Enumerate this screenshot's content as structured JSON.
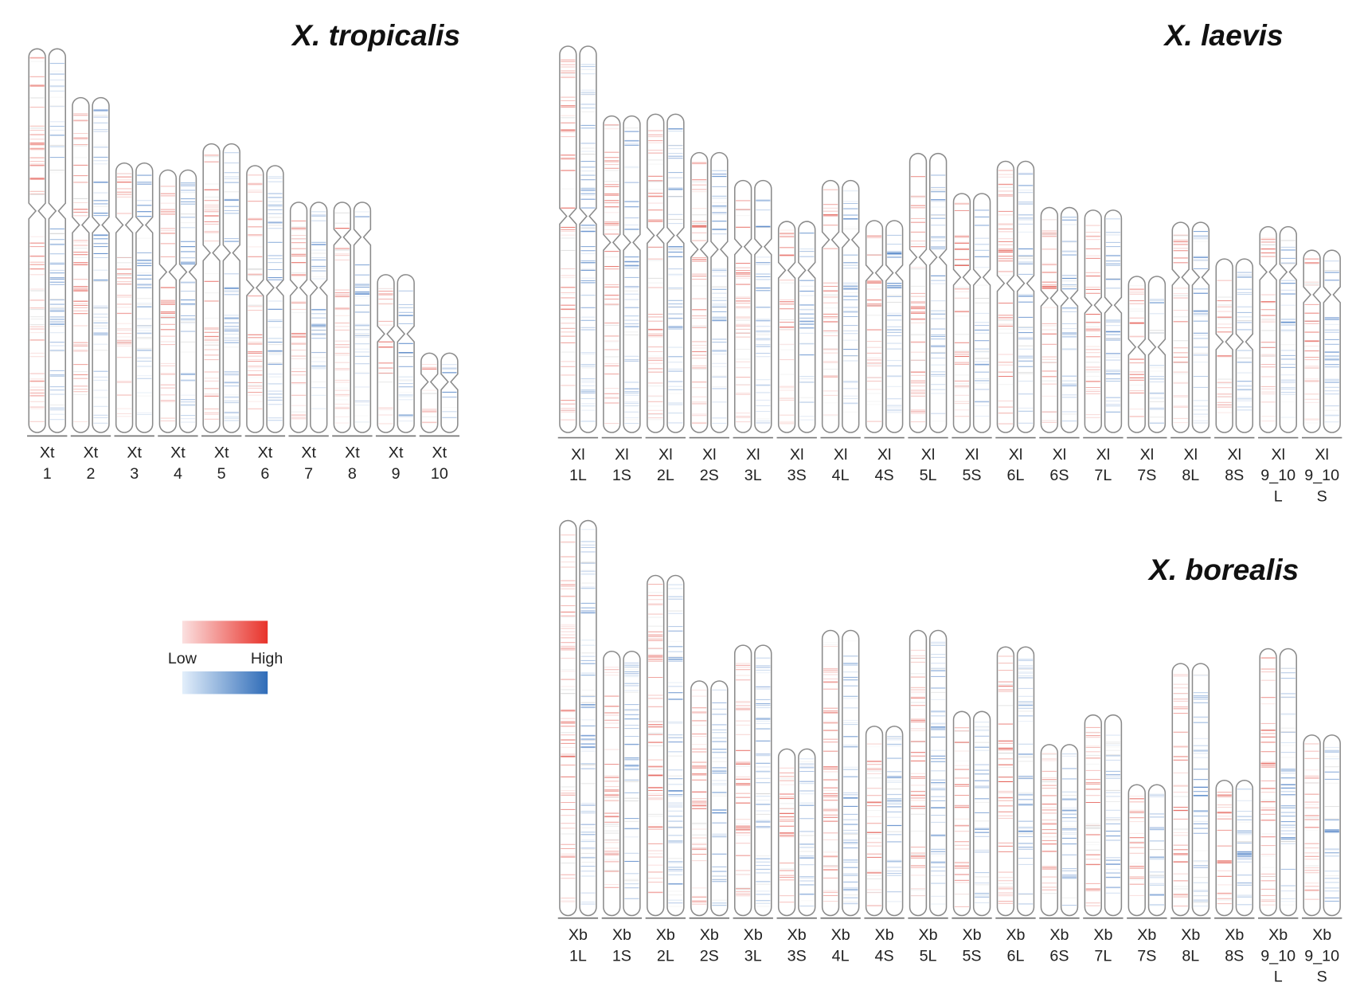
{
  "panels": [
    {
      "title": "X. tropicalis",
      "chromosomes": [
        [
          "Xt",
          "1"
        ],
        [
          "Xt",
          "2"
        ],
        [
          "Xt",
          "3"
        ],
        [
          "Xt",
          "4"
        ],
        [
          "Xt",
          "5"
        ],
        [
          "Xt",
          "6"
        ],
        [
          "Xt",
          "7"
        ],
        [
          "Xt",
          "8"
        ],
        [
          "Xt",
          "9"
        ],
        [
          "Xt",
          "10"
        ]
      ]
    },
    {
      "title": "X. laevis",
      "chromosomes": [
        [
          "Xl",
          "1L"
        ],
        [
          "Xl",
          "1S"
        ],
        [
          "Xl",
          "2L"
        ],
        [
          "Xl",
          "2S"
        ],
        [
          "Xl",
          "3L"
        ],
        [
          "Xl",
          "3S"
        ],
        [
          "Xl",
          "4L"
        ],
        [
          "Xl",
          "4S"
        ],
        [
          "Xl",
          "5L"
        ],
        [
          "Xl",
          "5S"
        ],
        [
          "Xl",
          "6L"
        ],
        [
          "Xl",
          "6S"
        ],
        [
          "Xl",
          "7L"
        ],
        [
          "Xl",
          "7S"
        ],
        [
          "Xl",
          "8L"
        ],
        [
          "Xl",
          "8S"
        ],
        [
          "Xl",
          "9_10",
          "L"
        ],
        [
          "Xl",
          "9_10",
          "S"
        ]
      ]
    },
    {
      "title": "X. borealis",
      "chromosomes": [
        [
          "Xb",
          "1L"
        ],
        [
          "Xb",
          "1S"
        ],
        [
          "Xb",
          "2L"
        ],
        [
          "Xb",
          "2S"
        ],
        [
          "Xb",
          "3L"
        ],
        [
          "Xb",
          "3S"
        ],
        [
          "Xb",
          "4L"
        ],
        [
          "Xb",
          "4S"
        ],
        [
          "Xb",
          "5L"
        ],
        [
          "Xb",
          "5S"
        ],
        [
          "Xb",
          "6L"
        ],
        [
          "Xb",
          "6S"
        ],
        [
          "Xb",
          "7L"
        ],
        [
          "Xb",
          "7S"
        ],
        [
          "Xb",
          "8L"
        ],
        [
          "Xb",
          "8S"
        ],
        [
          "Xb",
          "9_10",
          "L"
        ],
        [
          "Xb",
          "9_10",
          "S"
        ]
      ]
    }
  ],
  "legend": {
    "low": "Low",
    "high": "High"
  }
}
